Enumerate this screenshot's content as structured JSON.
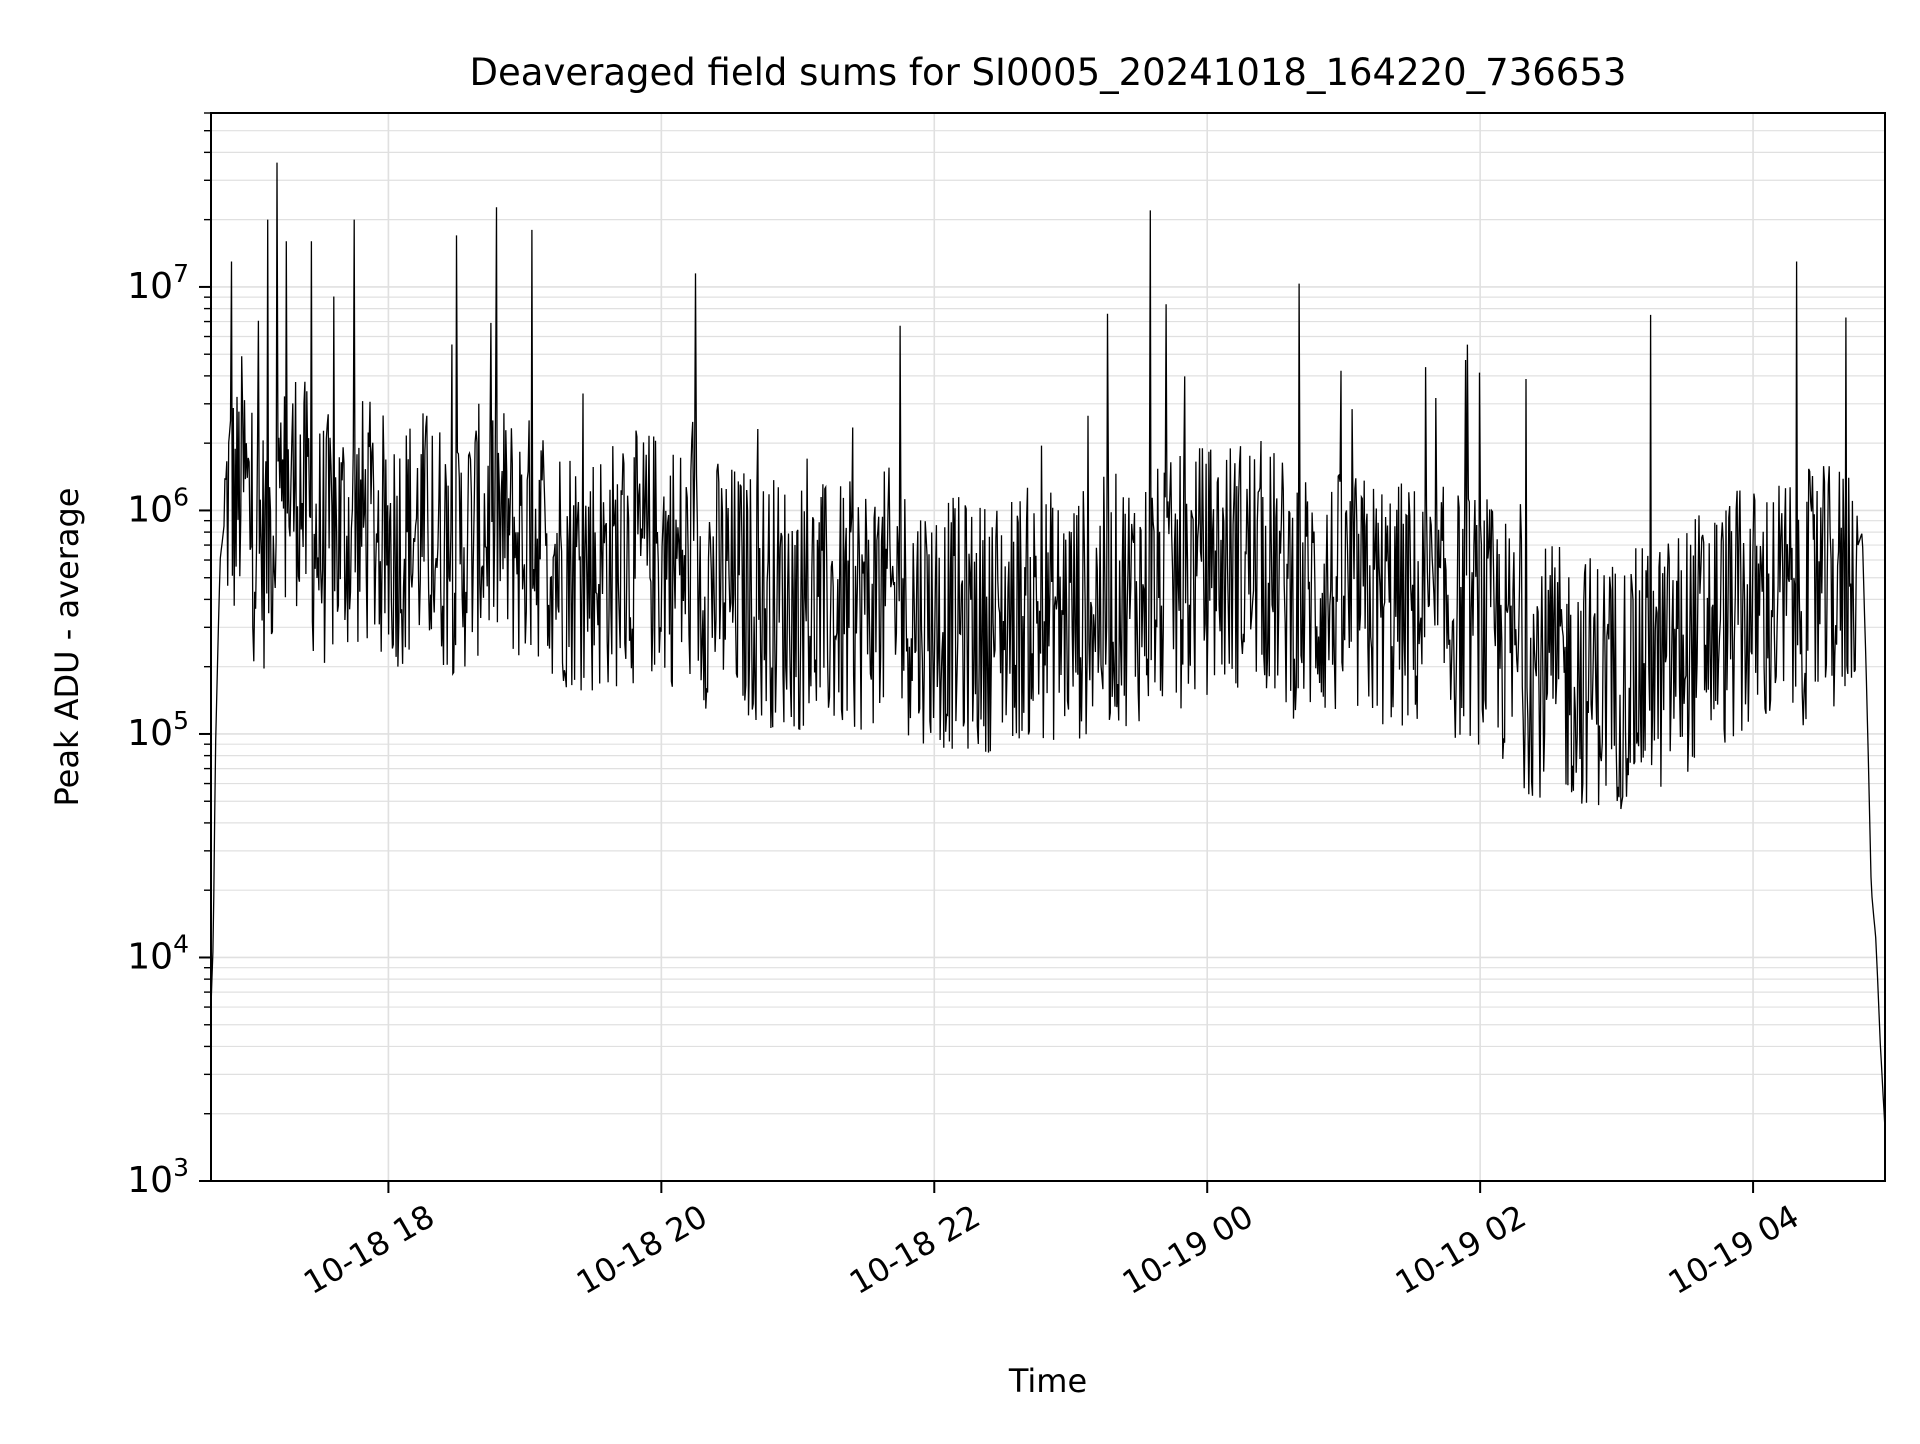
{
  "chart_data": {
    "type": "line",
    "title": "Deaveraged field sums for SI0005_20241018_164220_736653",
    "xlabel": "Time",
    "ylabel": "Peak ADU - average",
    "y_scale": "log",
    "ylim": [
      1000,
      60000000
    ],
    "xlim": [
      "2024-10-18 16:42",
      "2024-10-19 04:58"
    ],
    "x_ticks": [
      {
        "value": "2024-10-18 18:00",
        "label": "10-18 18"
      },
      {
        "value": "2024-10-18 20:00",
        "label": "10-18 20"
      },
      {
        "value": "2024-10-18 22:00",
        "label": "10-18 22"
      },
      {
        "value": "2024-10-19 00:00",
        "label": "10-19 00"
      },
      {
        "value": "2024-10-19 02:00",
        "label": "10-19 02"
      },
      {
        "value": "2024-10-19 04:00",
        "label": "10-19 04"
      }
    ],
    "y_ticks": [
      {
        "value": 1000,
        "base": "10",
        "exp": "3"
      },
      {
        "value": 10000,
        "base": "10",
        "exp": "4"
      },
      {
        "value": 100000,
        "base": "10",
        "exp": "5"
      },
      {
        "value": 1000000,
        "base": "10",
        "exp": "6"
      },
      {
        "value": 10000000,
        "base": "10",
        "exp": "7"
      }
    ],
    "grid": true,
    "line_color": "#000000",
    "grid_color": "#e0e0e0",
    "series": [
      {
        "x": [
          "2024-10-18 16:42",
          "2024-10-18 16:43",
          "2024-10-18 16:44",
          "2024-10-18 16:46",
          "2024-10-18 16:48",
          "2024-10-18 16:50",
          "2024-10-18 16:53",
          "2024-10-18 16:56",
          "2024-10-18 17:00",
          "2024-10-18 17:05",
          "2024-10-18 17:10",
          "2024-10-18 17:15",
          "2024-10-18 17:20",
          "2024-10-18 17:25",
          "2024-10-18 17:30",
          "2024-10-18 17:40",
          "2024-10-18 17:50",
          "2024-10-18 18:00",
          "2024-10-18 18:15",
          "2024-10-18 18:30",
          "2024-10-18 18:45",
          "2024-10-18 19:00",
          "2024-10-18 19:05",
          "2024-10-18 19:15",
          "2024-10-18 19:30",
          "2024-10-18 19:45",
          "2024-10-18 20:00",
          "2024-10-18 20:15",
          "2024-10-18 20:30",
          "2024-10-18 20:45",
          "2024-10-18 21:00",
          "2024-10-18 21:20",
          "2024-10-18 21:40",
          "2024-10-18 21:45",
          "2024-10-18 22:00",
          "2024-10-18 22:20",
          "2024-10-18 22:40",
          "2024-10-18 23:00",
          "2024-10-18 23:20",
          "2024-10-18 23:35",
          "2024-10-18 23:45",
          "2024-10-19 00:00",
          "2024-10-19 00:20",
          "2024-10-19 00:40",
          "2024-10-19 01:00",
          "2024-10-19 01:20",
          "2024-10-19 01:40",
          "2024-10-19 02:00",
          "2024-10-19 02:20",
          "2024-10-19 02:40",
          "2024-10-19 03:00",
          "2024-10-19 03:20",
          "2024-10-19 03:40",
          "2024-10-19 04:00",
          "2024-10-19 04:15",
          "2024-10-19 04:30",
          "2024-10-19 04:40",
          "2024-10-19 04:48",
          "2024-10-19 04:50",
          "2024-10-19 04:52",
          "2024-10-19 04:54",
          "2024-10-19 04:56",
          "2024-10-19 04:58"
        ],
        "y": [
          6000,
          12000,
          90000,
          600000,
          900000,
          1200000,
          1000000,
          1500000,
          800000,
          700000,
          900000,
          1100000,
          1400000,
          900000,
          700000,
          800000,
          900000,
          700000,
          800000,
          650000,
          900000,
          700000,
          800000,
          600000,
          550000,
          600000,
          650000,
          500000,
          450000,
          400000,
          380000,
          350000,
          420000,
          380000,
          320000,
          300000,
          350000,
          330000,
          400000,
          420000,
          450000,
          550000,
          600000,
          420000,
          400000,
          380000,
          350000,
          330000,
          200000,
          180000,
          170000,
          200000,
          300000,
          350000,
          400000,
          420000,
          450000,
          800000,
          150000,
          20000,
          12000,
          4000,
          1700
        ]
      }
    ],
    "spikes": [
      {
        "x": "2024-10-18 16:51",
        "y": 13000000
      },
      {
        "x": "2024-10-18 17:07",
        "y": 20000000
      },
      {
        "x": "2024-10-18 17:11",
        "y": 36000000
      },
      {
        "x": "2024-10-18 17:15",
        "y": 16000000
      },
      {
        "x": "2024-10-18 17:26",
        "y": 16000000
      },
      {
        "x": "2024-10-18 17:45",
        "y": 20000000
      },
      {
        "x": "2024-10-18 18:30",
        "y": 17000000
      },
      {
        "x": "2024-10-18 19:03",
        "y": 18000000
      },
      {
        "x": "2024-10-18 20:15",
        "y": 11500000
      },
      {
        "x": "2024-10-18 21:45",
        "y": 6700000
      },
      {
        "x": "2024-10-18 23:35",
        "y": 22000000
      },
      {
        "x": "2024-10-19 03:15",
        "y": 7500000
      },
      {
        "x": "2024-10-19 04:19",
        "y": 13000000
      },
      {
        "x": "2024-10-19 04:41",
        "y": 7300000
      }
    ]
  }
}
